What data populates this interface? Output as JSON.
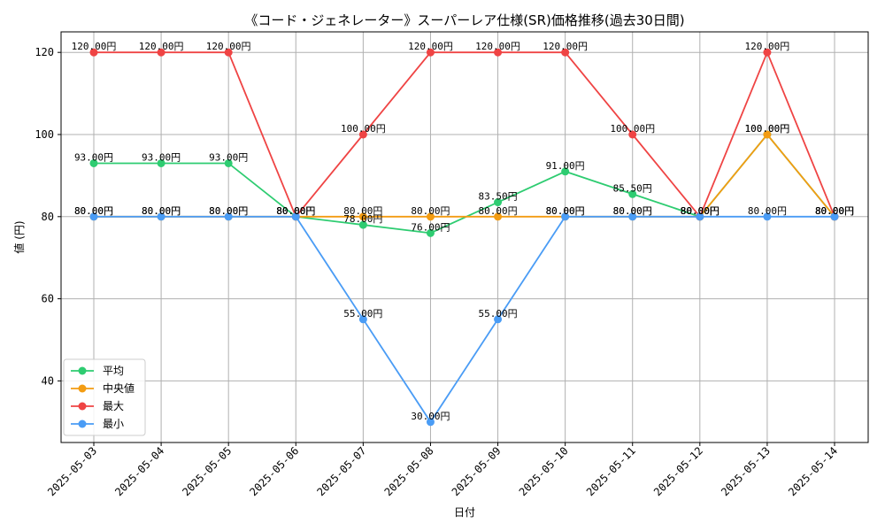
{
  "chart_data": {
    "type": "line",
    "title": "《コード・ジェネレーター》スーパーレア仕様(SR)価格推移(過去30日間)",
    "xlabel": "日付",
    "ylabel": "値 (円)",
    "ylim": [
      25,
      125
    ],
    "yticks": [
      40,
      60,
      80,
      100,
      120
    ],
    "categories": [
      "2025-05-03",
      "2025-05-04",
      "2025-05-05",
      "2025-05-06",
      "2025-05-07",
      "2025-05-08",
      "2025-05-09",
      "2025-05-10",
      "2025-05-11",
      "2025-05-12",
      "2025-05-13",
      "2025-05-14"
    ],
    "grid": true,
    "legend_position": "lower-left",
    "value_suffix": "円",
    "series": [
      {
        "name": "平均",
        "color": "#2ecc71",
        "values": [
          93,
          93,
          93,
          80,
          78,
          76,
          83.5,
          91,
          85.5,
          80,
          100,
          80
        ]
      },
      {
        "name": "中央値",
        "color": "#f39c12",
        "values": [
          80,
          80,
          80,
          80,
          80,
          80,
          80,
          80,
          80,
          80,
          100,
          80
        ]
      },
      {
        "name": "最大",
        "color": "#ef4444",
        "values": [
          120,
          120,
          120,
          80,
          100,
          120,
          120,
          120,
          100,
          80,
          120,
          80
        ]
      },
      {
        "name": "最小",
        "color": "#4a9cf5",
        "values": [
          80,
          80,
          80,
          80,
          55,
          30,
          55,
          80,
          80,
          80,
          80,
          80
        ]
      }
    ]
  }
}
